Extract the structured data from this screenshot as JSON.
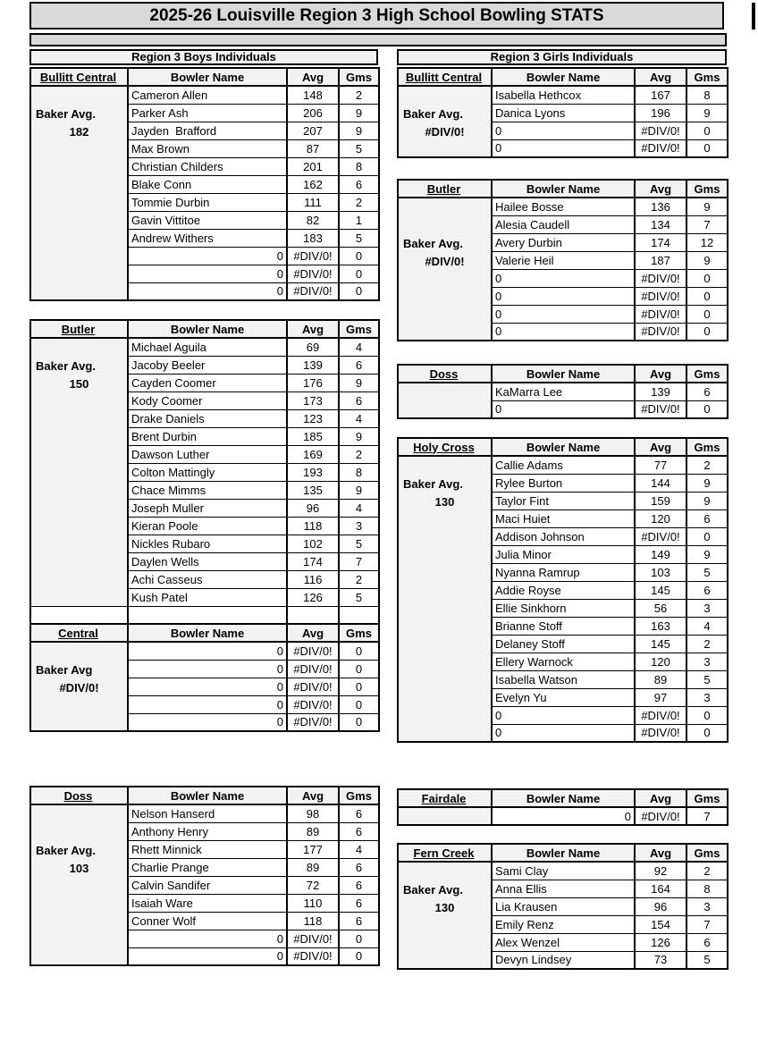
{
  "title": "2025-26 Louisville Region 3 High School Bowling STATS",
  "col_headers": {
    "name": "Bowler Name",
    "avg": "Avg",
    "gms": "Gms"
  },
  "colors": {
    "title_bg": "#d9d9d9",
    "band_bg": "#d9d9d9",
    "header_bg": "#f2f2f2",
    "label_bg": "#f2f2f2",
    "cell_bg": "#ffffff",
    "border": "#000000"
  },
  "sections": {
    "boys": {
      "heading": "Region 3 Boys Individuals",
      "tables": [
        {
          "school": "Bullitt Central",
          "baker_label": "Baker Avg.",
          "baker_value": "182",
          "baker_row": 1,
          "rows": [
            {
              "name": "Cameron Allen",
              "avg": "148",
              "gms": "2"
            },
            {
              "name": "Parker Ash",
              "avg": "206",
              "gms": "9"
            },
            {
              "name": "Jayden  Brafford",
              "avg": "207",
              "gms": "9"
            },
            {
              "name": "Max Brown",
              "avg": "87",
              "gms": "5"
            },
            {
              "name": "Christian Childers",
              "avg": "201",
              "gms": "8"
            },
            {
              "name": "Blake Conn",
              "avg": "162",
              "gms": "6"
            },
            {
              "name": "Tommie Durbin",
              "avg": "111",
              "gms": "2"
            },
            {
              "name": "Gavin Vittitoe",
              "avg": "82",
              "gms": "1"
            },
            {
              "name": "Andrew Withers",
              "avg": "183",
              "gms": "5"
            },
            {
              "name": "0",
              "avg": "#DIV/0!",
              "gms": "0",
              "align": "right"
            },
            {
              "name": "0",
              "avg": "#DIV/0!",
              "gms": "0",
              "align": "right"
            },
            {
              "name": "0",
              "avg": "#DIV/0!",
              "gms": "0",
              "align": "right"
            }
          ]
        },
        {
          "school": "Butler",
          "baker_label": "Baker Avg.",
          "baker_value": "150",
          "baker_row": 1,
          "label_span": 15,
          "rows": [
            {
              "name": "Michael Aguila",
              "avg": "69",
              "gms": "4"
            },
            {
              "name": "Jacoby Beeler",
              "avg": "139",
              "gms": "6"
            },
            {
              "name": "Cayden Coomer",
              "avg": "176",
              "gms": "9"
            },
            {
              "name": "Kody Coomer",
              "avg": "173",
              "gms": "6"
            },
            {
              "name": "Drake Daniels",
              "avg": "123",
              "gms": "4"
            },
            {
              "name": "Brent Durbin",
              "avg": "185",
              "gms": "9"
            },
            {
              "name": "Dawson Luther",
              "avg": "169",
              "gms": "2"
            },
            {
              "name": "Colton Mattingly",
              "avg": "193",
              "gms": "8"
            },
            {
              "name": "Chace Mimms",
              "avg": "135",
              "gms": "9"
            },
            {
              "name": "Joseph Muller",
              "avg": "96",
              "gms": "4"
            },
            {
              "name": "Kieran Poole",
              "avg": "118",
              "gms": "3"
            },
            {
              "name": "Nickles Rubaro",
              "avg": "102",
              "gms": "5"
            },
            {
              "name": "Daylen Wells",
              "avg": "174",
              "gms": "7"
            },
            {
              "name": "Achi Casseus",
              "avg": "116",
              "gms": "2"
            },
            {
              "name": "Kush Patel",
              "avg": "126",
              "gms": "5"
            },
            {
              "name": "",
              "avg": "",
              "gms": ""
            }
          ]
        },
        {
          "school": "Central",
          "baker_label": "Baker Avg",
          "baker_value": "#DIV/0!",
          "baker_row": 1,
          "rows": [
            {
              "name": "0",
              "avg": "#DIV/0!",
              "gms": "0",
              "align": "right"
            },
            {
              "name": "0",
              "avg": "#DIV/0!",
              "gms": "0",
              "align": "right"
            },
            {
              "name": "0",
              "avg": "#DIV/0!",
              "gms": "0",
              "align": "right"
            },
            {
              "name": "0",
              "avg": "#DIV/0!",
              "gms": "0",
              "align": "right"
            },
            {
              "name": "0",
              "avg": "#DIV/0!",
              "gms": "0",
              "align": "right"
            }
          ]
        },
        {
          "school": "Doss",
          "baker_label": "Baker Avg.",
          "baker_value": "103",
          "baker_row": 2,
          "rows": [
            {
              "name": "Nelson Hanserd",
              "avg": "98",
              "gms": "6"
            },
            {
              "name": "Anthony Henry",
              "avg": "89",
              "gms": "6"
            },
            {
              "name": "Rhett Minnick",
              "avg": "177",
              "gms": "4"
            },
            {
              "name": "Charlie Prange",
              "avg": "89",
              "gms": "6"
            },
            {
              "name": "Calvin Sandifer",
              "avg": "72",
              "gms": "6"
            },
            {
              "name": "Isaiah Ware",
              "avg": "110",
              "gms": "6"
            },
            {
              "name": "Conner Wolf",
              "avg": "118",
              "gms": "6"
            },
            {
              "name": "0",
              "avg": "#DIV/0!",
              "gms": "0",
              "align": "right"
            },
            {
              "name": "0",
              "avg": "#DIV/0!",
              "gms": "0",
              "align": "right"
            }
          ]
        }
      ]
    },
    "girls": {
      "heading": "Region 3 Girls Individuals",
      "tables": [
        {
          "school": "Bullitt Central",
          "baker_label": "Baker Avg.",
          "baker_value": "#DIV/0!",
          "baker_row": 1,
          "rows": [
            {
              "name": "Isabella Hethcox",
              "avg": "167",
              "gms": "8"
            },
            {
              "name": "Danica Lyons",
              "avg": "196",
              "gms": "9"
            },
            {
              "name": "0",
              "avg": "#DIV/0!",
              "gms": "0"
            },
            {
              "name": "0",
              "avg": "#DIV/0!",
              "gms": "0"
            }
          ]
        },
        {
          "school": "Butler",
          "baker_label": "Baker Avg.",
          "baker_value": "#DIV/0!",
          "baker_row": 2,
          "rows": [
            {
              "name": "Hailee Bosse",
              "avg": "136",
              "gms": "9"
            },
            {
              "name": "Alesia Caudell",
              "avg": "134",
              "gms": "7"
            },
            {
              "name": "Avery Durbin",
              "avg": "174",
              "gms": "12"
            },
            {
              "name": "Valerie Heil",
              "avg": "187",
              "gms": "9"
            },
            {
              "name": "0",
              "avg": "#DIV/0!",
              "gms": "0"
            },
            {
              "name": "0",
              "avg": "#DIV/0!",
              "gms": "0"
            },
            {
              "name": "0",
              "avg": "#DIV/0!",
              "gms": "0"
            },
            {
              "name": "0",
              "avg": "#DIV/0!",
              "gms": "0"
            }
          ]
        },
        {
          "school": "Doss",
          "baker_label": null,
          "baker_value": null,
          "rows": [
            {
              "name": "KaMarra Lee",
              "avg": "139",
              "gms": "6"
            },
            {
              "name": "0",
              "avg": "#DIV/0!",
              "gms": "0"
            }
          ]
        },
        {
          "school": "Holy Cross",
          "baker_label": "Baker Avg.",
          "baker_value": "130",
          "baker_row": 1,
          "rows": [
            {
              "name": "Callie Adams",
              "avg": "77",
              "gms": "2"
            },
            {
              "name": "Rylee Burton",
              "avg": "144",
              "gms": "9"
            },
            {
              "name": "Taylor Fint",
              "avg": "159",
              "gms": "9"
            },
            {
              "name": "Maci Huiet",
              "avg": "120",
              "gms": "6"
            },
            {
              "name": "Addison Johnson",
              "avg": "#DIV/0!",
              "gms": "0"
            },
            {
              "name": "Julia Minor",
              "avg": "149",
              "gms": "9"
            },
            {
              "name": "Nyanna Ramrup",
              "avg": "103",
              "gms": "5"
            },
            {
              "name": "Addie Royse",
              "avg": "145",
              "gms": "6"
            },
            {
              "name": "Ellie Sinkhorn",
              "avg": "56",
              "gms": "3"
            },
            {
              "name": "Brianne Stoff",
              "avg": "163",
              "gms": "4"
            },
            {
              "name": "Delaney Stoff",
              "avg": "145",
              "gms": "2"
            },
            {
              "name": "Ellery Warnock",
              "avg": "120",
              "gms": "3"
            },
            {
              "name": "Isabella Watson",
              "avg": "89",
              "gms": "5"
            },
            {
              "name": "Evelyn Yu",
              "avg": "97",
              "gms": "3"
            },
            {
              "name": "0",
              "avg": "#DIV/0!",
              "gms": "0"
            },
            {
              "name": "0",
              "avg": "#DIV/0!",
              "gms": "0"
            }
          ]
        },
        {
          "school": "Fairdale",
          "baker_label": null,
          "baker_value": null,
          "rows": [
            {
              "name": "0",
              "avg": "#DIV/0!",
              "gms": "7",
              "align": "right"
            }
          ]
        },
        {
          "school": "Fern Creek",
          "baker_label": "Baker Avg.",
          "baker_value": "130",
          "baker_row": 1,
          "rows": [
            {
              "name": "Sami Clay",
              "avg": "92",
              "gms": "2"
            },
            {
              "name": "Anna Ellis",
              "avg": "164",
              "gms": "8"
            },
            {
              "name": "Lia Krausen",
              "avg": "96",
              "gms": "3"
            },
            {
              "name": "Emily Renz",
              "avg": "154",
              "gms": "7"
            },
            {
              "name": "Alex Wenzel",
              "avg": "126",
              "gms": "6"
            },
            {
              "name": "Devyn Lindsey",
              "avg": "73",
              "gms": "5"
            }
          ]
        }
      ]
    }
  }
}
